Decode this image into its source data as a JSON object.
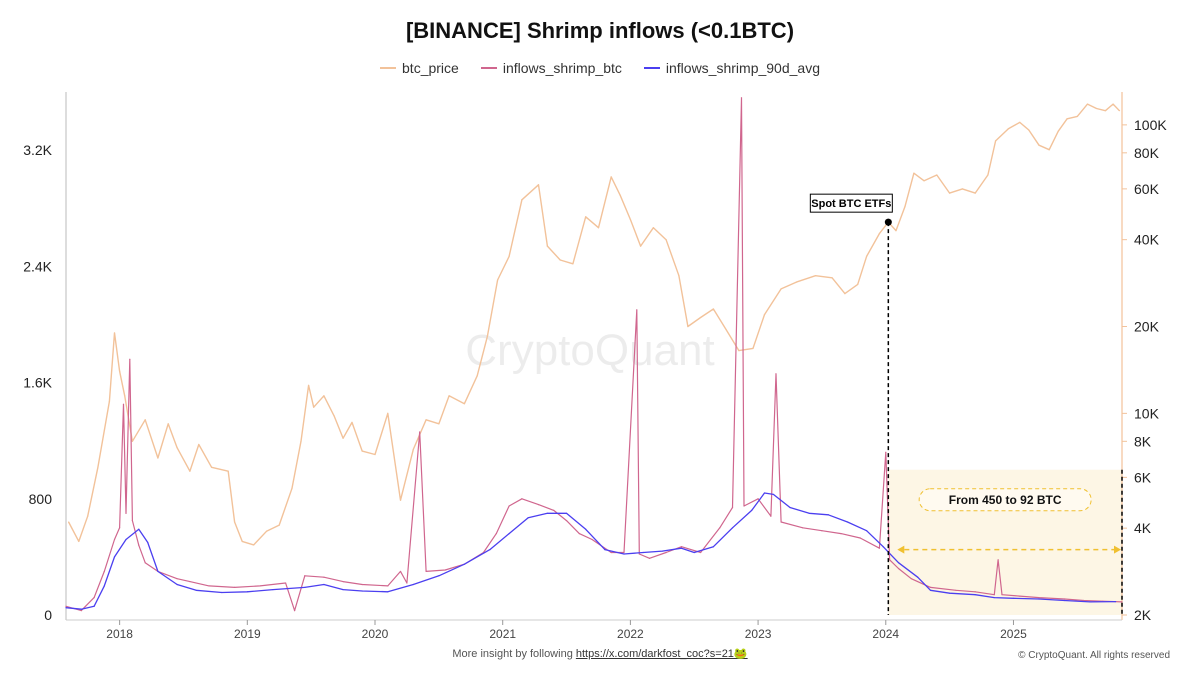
{
  "chart_data": {
    "type": "line",
    "title": "[BINANCE] Shrimp inflows (<0.1BTC)",
    "legend": [
      {
        "name": "btc_price",
        "color": "#f2c29a"
      },
      {
        "name": "inflows_shrimp_btc",
        "color": "#d0668e"
      },
      {
        "name": "inflows_shrimp_90d_avg",
        "color": "#4b3ff0"
      }
    ],
    "x_ticks": [
      "2018",
      "2019",
      "2020",
      "2021",
      "2022",
      "2023",
      "2024",
      "2025"
    ],
    "x_range": [
      2017.58,
      2025.85
    ],
    "left_axis": {
      "ticks": [
        "0",
        "800",
        "1.6K",
        "2.4K",
        "3.2K"
      ],
      "tick_values": [
        0,
        800,
        1600,
        2400,
        3200
      ],
      "range": [
        0,
        3600
      ]
    },
    "right_axis": {
      "scale": "log",
      "ticks": [
        "2K",
        "4K",
        "6K",
        "8K",
        "10K",
        "20K",
        "40K",
        "60K",
        "80K",
        "100K"
      ],
      "tick_values": [
        2000,
        4000,
        6000,
        8000,
        10000,
        20000,
        40000,
        60000,
        80000,
        100000
      ],
      "range": [
        2000,
        130000
      ]
    },
    "series": [
      {
        "name": "btc_price",
        "axis": "right",
        "points": [
          [
            2017.6,
            4200
          ],
          [
            2017.68,
            3600
          ],
          [
            2017.75,
            4400
          ],
          [
            2017.83,
            6500
          ],
          [
            2017.92,
            11000
          ],
          [
            2017.96,
            19000
          ],
          [
            2018.0,
            14000
          ],
          [
            2018.04,
            11500
          ],
          [
            2018.1,
            8000
          ],
          [
            2018.2,
            9500
          ],
          [
            2018.3,
            7000
          ],
          [
            2018.38,
            9200
          ],
          [
            2018.45,
            7600
          ],
          [
            2018.55,
            6300
          ],
          [
            2018.62,
            7800
          ],
          [
            2018.72,
            6500
          ],
          [
            2018.85,
            6300
          ],
          [
            2018.9,
            4200
          ],
          [
            2018.96,
            3600
          ],
          [
            2019.05,
            3500
          ],
          [
            2019.15,
            3900
          ],
          [
            2019.25,
            4100
          ],
          [
            2019.35,
            5500
          ],
          [
            2019.42,
            8000
          ],
          [
            2019.48,
            12500
          ],
          [
            2019.52,
            10500
          ],
          [
            2019.6,
            11500
          ],
          [
            2019.68,
            9800
          ],
          [
            2019.75,
            8200
          ],
          [
            2019.82,
            9300
          ],
          [
            2019.9,
            7400
          ],
          [
            2020.0,
            7200
          ],
          [
            2020.1,
            10000
          ],
          [
            2020.2,
            5000
          ],
          [
            2020.3,
            7500
          ],
          [
            2020.4,
            9500
          ],
          [
            2020.5,
            9200
          ],
          [
            2020.58,
            11500
          ],
          [
            2020.7,
            10800
          ],
          [
            2020.8,
            13500
          ],
          [
            2020.88,
            18500
          ],
          [
            2020.96,
            29000
          ],
          [
            2021.05,
            35000
          ],
          [
            2021.15,
            55000
          ],
          [
            2021.28,
            62000
          ],
          [
            2021.35,
            38000
          ],
          [
            2021.45,
            34000
          ],
          [
            2021.55,
            33000
          ],
          [
            2021.65,
            48000
          ],
          [
            2021.75,
            44000
          ],
          [
            2021.85,
            66000
          ],
          [
            2021.92,
            57000
          ],
          [
            2022.0,
            47000
          ],
          [
            2022.08,
            38000
          ],
          [
            2022.18,
            44000
          ],
          [
            2022.28,
            40000
          ],
          [
            2022.38,
            30000
          ],
          [
            2022.45,
            20000
          ],
          [
            2022.55,
            21500
          ],
          [
            2022.65,
            23000
          ],
          [
            2022.75,
            19500
          ],
          [
            2022.85,
            16500
          ],
          [
            2022.96,
            16800
          ],
          [
            2023.05,
            22000
          ],
          [
            2023.18,
            27000
          ],
          [
            2023.3,
            28500
          ],
          [
            2023.45,
            30000
          ],
          [
            2023.58,
            29500
          ],
          [
            2023.68,
            26000
          ],
          [
            2023.78,
            28000
          ],
          [
            2023.85,
            35000
          ],
          [
            2023.95,
            42000
          ],
          [
            2024.02,
            46000
          ],
          [
            2024.08,
            43000
          ],
          [
            2024.15,
            52000
          ],
          [
            2024.22,
            68000
          ],
          [
            2024.3,
            64000
          ],
          [
            2024.4,
            67000
          ],
          [
            2024.5,
            58000
          ],
          [
            2024.6,
            60000
          ],
          [
            2024.7,
            58000
          ],
          [
            2024.8,
            67000
          ],
          [
            2024.86,
            88000
          ],
          [
            2024.96,
            97000
          ],
          [
            2025.05,
            102000
          ],
          [
            2025.12,
            96000
          ],
          [
            2025.2,
            85000
          ],
          [
            2025.28,
            82000
          ],
          [
            2025.35,
            95000
          ],
          [
            2025.42,
            105000
          ],
          [
            2025.5,
            107000
          ],
          [
            2025.58,
            118000
          ],
          [
            2025.65,
            114000
          ],
          [
            2025.72,
            112000
          ],
          [
            2025.78,
            118000
          ],
          [
            2025.83,
            112000
          ]
        ]
      },
      {
        "name": "inflows_shrimp_btc",
        "axis": "left",
        "points": [
          [
            2017.58,
            60
          ],
          [
            2017.7,
            30
          ],
          [
            2017.8,
            120
          ],
          [
            2017.88,
            300
          ],
          [
            2017.96,
            520
          ],
          [
            2018.0,
            600
          ],
          [
            2018.03,
            1450
          ],
          [
            2018.05,
            700
          ],
          [
            2018.08,
            1760
          ],
          [
            2018.1,
            650
          ],
          [
            2018.15,
            480
          ],
          [
            2018.2,
            360
          ],
          [
            2018.3,
            300
          ],
          [
            2018.45,
            250
          ],
          [
            2018.55,
            230
          ],
          [
            2018.7,
            200
          ],
          [
            2018.9,
            190
          ],
          [
            2019.1,
            200
          ],
          [
            2019.3,
            220
          ],
          [
            2019.37,
            30
          ],
          [
            2019.45,
            270
          ],
          [
            2019.6,
            260
          ],
          [
            2019.75,
            230
          ],
          [
            2019.9,
            210
          ],
          [
            2020.1,
            200
          ],
          [
            2020.2,
            300
          ],
          [
            2020.25,
            220
          ],
          [
            2020.35,
            1260
          ],
          [
            2020.4,
            300
          ],
          [
            2020.55,
            310
          ],
          [
            2020.7,
            350
          ],
          [
            2020.85,
            430
          ],
          [
            2020.95,
            560
          ],
          [
            2021.05,
            750
          ],
          [
            2021.15,
            800
          ],
          [
            2021.28,
            760
          ],
          [
            2021.4,
            720
          ],
          [
            2021.5,
            650
          ],
          [
            2021.6,
            560
          ],
          [
            2021.7,
            520
          ],
          [
            2021.85,
            430
          ],
          [
            2021.95,
            430
          ],
          [
            2022.05,
            2100
          ],
          [
            2022.07,
            420
          ],
          [
            2022.15,
            390
          ],
          [
            2022.28,
            430
          ],
          [
            2022.4,
            470
          ],
          [
            2022.55,
            430
          ],
          [
            2022.7,
            600
          ],
          [
            2022.8,
            740
          ],
          [
            2022.87,
            3560
          ],
          [
            2022.89,
            750
          ],
          [
            2023.0,
            800
          ],
          [
            2023.1,
            680
          ],
          [
            2023.14,
            1660
          ],
          [
            2023.18,
            640
          ],
          [
            2023.35,
            600
          ],
          [
            2023.5,
            580
          ],
          [
            2023.65,
            560
          ],
          [
            2023.8,
            530
          ],
          [
            2023.95,
            460
          ],
          [
            2024.0,
            1120
          ],
          [
            2024.03,
            380
          ],
          [
            2024.1,
            320
          ],
          [
            2024.2,
            250
          ],
          [
            2024.35,
            190
          ],
          [
            2024.55,
            170
          ],
          [
            2024.7,
            160
          ],
          [
            2024.85,
            140
          ],
          [
            2024.88,
            380
          ],
          [
            2024.91,
            140
          ],
          [
            2025.05,
            130
          ],
          [
            2025.2,
            120
          ],
          [
            2025.4,
            110
          ],
          [
            2025.55,
            100
          ],
          [
            2025.7,
            95
          ],
          [
            2025.85,
            90
          ]
        ]
      },
      {
        "name": "inflows_shrimp_90d_avg",
        "axis": "left",
        "points": [
          [
            2017.58,
            50
          ],
          [
            2017.7,
            40
          ],
          [
            2017.8,
            60
          ],
          [
            2017.88,
            200
          ],
          [
            2017.96,
            400
          ],
          [
            2018.05,
            520
          ],
          [
            2018.15,
            590
          ],
          [
            2018.22,
            500
          ],
          [
            2018.3,
            300
          ],
          [
            2018.45,
            210
          ],
          [
            2018.6,
            170
          ],
          [
            2018.8,
            155
          ],
          [
            2019.0,
            160
          ],
          [
            2019.2,
            175
          ],
          [
            2019.45,
            190
          ],
          [
            2019.6,
            210
          ],
          [
            2019.75,
            175
          ],
          [
            2019.9,
            165
          ],
          [
            2020.1,
            160
          ],
          [
            2020.3,
            210
          ],
          [
            2020.5,
            270
          ],
          [
            2020.7,
            350
          ],
          [
            2020.9,
            450
          ],
          [
            2021.05,
            560
          ],
          [
            2021.2,
            670
          ],
          [
            2021.35,
            700
          ],
          [
            2021.5,
            700
          ],
          [
            2021.65,
            590
          ],
          [
            2021.8,
            450
          ],
          [
            2021.95,
            420
          ],
          [
            2022.1,
            430
          ],
          [
            2022.25,
            440
          ],
          [
            2022.4,
            460
          ],
          [
            2022.5,
            430
          ],
          [
            2022.65,
            470
          ],
          [
            2022.8,
            600
          ],
          [
            2022.95,
            720
          ],
          [
            2023.05,
            840
          ],
          [
            2023.12,
            830
          ],
          [
            2023.25,
            740
          ],
          [
            2023.4,
            700
          ],
          [
            2023.55,
            690
          ],
          [
            2023.7,
            640
          ],
          [
            2023.85,
            580
          ],
          [
            2023.98,
            470
          ],
          [
            2024.1,
            360
          ],
          [
            2024.25,
            260
          ],
          [
            2024.35,
            170
          ],
          [
            2024.5,
            150
          ],
          [
            2024.7,
            140
          ],
          [
            2024.85,
            120
          ],
          [
            2025.0,
            115
          ],
          [
            2025.2,
            110
          ],
          [
            2025.4,
            100
          ],
          [
            2025.6,
            90
          ],
          [
            2025.8,
            92
          ]
        ]
      }
    ],
    "annotations": [
      {
        "label": "Spot BTC ETFs",
        "x": 2024.02,
        "price": 46000
      },
      {
        "label": "From 450 to 92 BTC",
        "x_start": 2024.02,
        "x_end": 2025.85
      }
    ]
  },
  "watermark": "CryptoQuant",
  "footer": {
    "prefix": "More insight by following",
    "link": "https://x.com/darkfost_coc?s=21🐸"
  },
  "copyright": "© CryptoQuant. All rights reserved"
}
